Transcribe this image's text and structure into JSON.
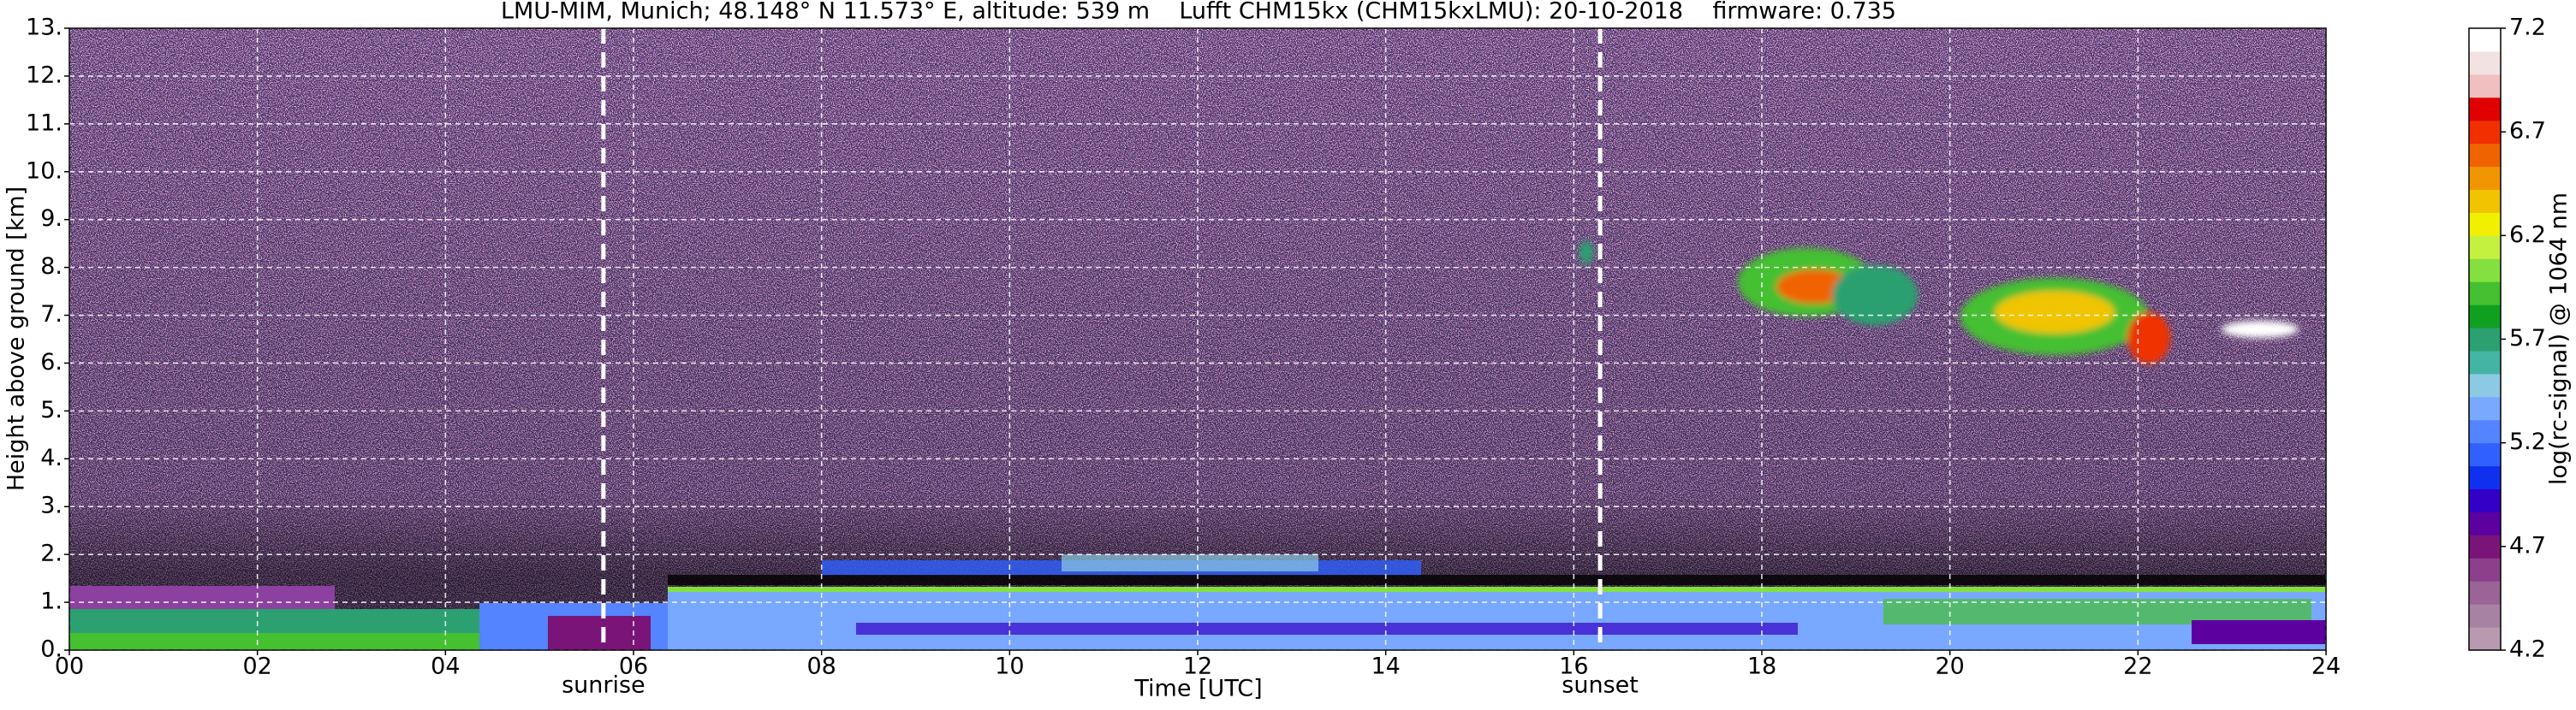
{
  "chart_data": {
    "type": "heatmap",
    "title": "LMU-MIM, Munich; 48.148° N 11.573° E, altitude: 539 m    Lufft CHM15kx (CHM15kxLMU): 20-10-2018    firmware: 0.735",
    "xlabel": "Time [UTC]",
    "ylabel": "Height above ground [km]",
    "xlim": [
      0,
      24
    ],
    "xticks": [
      {
        "value": 0,
        "label": "00"
      },
      {
        "value": 2,
        "label": "02"
      },
      {
        "value": 4,
        "label": "04"
      },
      {
        "value": 6,
        "label": "06"
      },
      {
        "value": 8,
        "label": "08"
      },
      10,
      12,
      14,
      16,
      18,
      20,
      22,
      24
    ],
    "ylim": [
      0,
      13
    ],
    "yticks": [
      {
        "value": 0,
        "label": "0."
      },
      {
        "value": 1,
        "label": "1."
      },
      {
        "value": 2,
        "label": "2."
      },
      {
        "value": 3,
        "label": "3."
      },
      {
        "value": 4,
        "label": "4."
      },
      {
        "value": 5,
        "label": "5."
      },
      {
        "value": 6,
        "label": "6."
      },
      {
        "value": 7,
        "label": "7."
      },
      {
        "value": 8,
        "label": "8."
      },
      {
        "value": 9,
        "label": "9."
      },
      {
        "value": 10,
        "label": "10."
      },
      {
        "value": 11,
        "label": "11."
      },
      {
        "value": 12,
        "label": "12."
      },
      {
        "value": 13,
        "label": "13."
      }
    ],
    "grid": true,
    "annotations": [
      {
        "text": "sunrise",
        "x": 5.68
      },
      {
        "text": "sunset",
        "x": 16.28
      }
    ],
    "colorbar": {
      "label": "log(rc-signal) @ 1064 nm",
      "lim": [
        4.2,
        7.2
      ],
      "ticks": [
        4.2,
        4.7,
        5.2,
        5.7,
        6.2,
        6.7,
        7.2
      ],
      "colors": [
        "#b89ab0",
        "#a882a2",
        "#9a6496",
        "#8c408c",
        "#7a1478",
        "#5c00a0",
        "#3400c8",
        "#1030f0",
        "#3060ff",
        "#5484ff",
        "#78a8ff",
        "#8ccae4",
        "#44b4a4",
        "#2ca070",
        "#10a020",
        "#44c030",
        "#84e040",
        "#c4f040",
        "#f0f000",
        "#f0c400",
        "#f09400",
        "#f06400",
        "#f03000",
        "#e00000",
        "#f0c0c0",
        "#f2e2e2",
        "#ffffff"
      ]
    }
  }
}
